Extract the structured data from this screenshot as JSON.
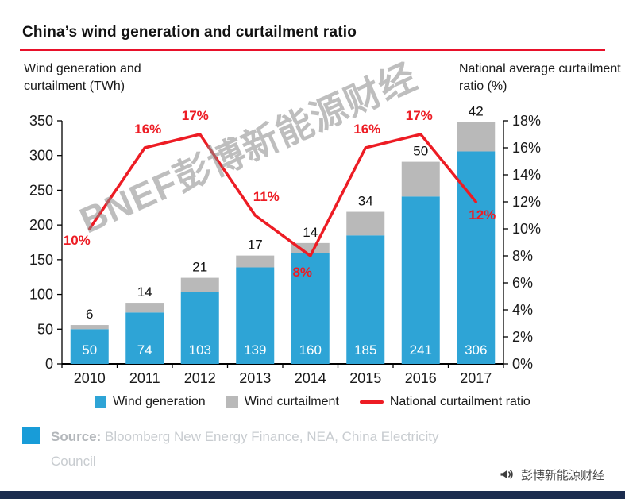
{
  "chart_data": {
    "type": "bar",
    "title": "China’s wind generation and curtailment ratio",
    "categories": [
      "2010",
      "2011",
      "2012",
      "2013",
      "2014",
      "2015",
      "2016",
      "2017"
    ],
    "series": [
      {
        "name": "Wind generation",
        "type": "bar",
        "color": "#2ea4d6",
        "values": [
          50,
          74,
          103,
          139,
          160,
          185,
          241,
          306
        ]
      },
      {
        "name": "Wind curtailment",
        "type": "bar",
        "color": "#b9b9b9",
        "values": [
          6,
          14,
          21,
          17,
          14,
          34,
          50,
          42
        ]
      },
      {
        "name": "National curtailment ratio",
        "type": "line",
        "color": "#ed1c24",
        "values": [
          10,
          16,
          17,
          11,
          8,
          16,
          17,
          12
        ],
        "point_labels": [
          "10%",
          "16%",
          "17%",
          "11%",
          "8%",
          "16%",
          "17%",
          "12%"
        ]
      }
    ],
    "left_axis": {
      "title": "Wind generation and curtailment (TWh)",
      "min": 0,
      "max": 350,
      "step": 50,
      "tick_labels": [
        "350",
        "300",
        "250",
        "200",
        "150",
        "100",
        "50",
        "0"
      ]
    },
    "right_axis": {
      "title": "National average curtailment ratio (%)",
      "min": 0,
      "max": 18,
      "step": 2,
      "tick_labels": [
        "18%",
        "16%",
        "14%",
        "12%",
        "10%",
        "8%",
        "6%",
        "4%",
        "2%",
        "0%"
      ]
    },
    "grid": "off",
    "legend_position": "bottom"
  },
  "title_rule_color": "#e8112a",
  "watermark": {
    "text": "BNEF彭博新能源财经"
  },
  "source": {
    "label": "Source:",
    "line1": "Bloomberg New Energy Finance, NEA, China Electricity",
    "line2": "Council",
    "icon_color": "#189cd8"
  },
  "footer": {
    "logo_text": "彭博新能源财经",
    "bar_color": "#1b2c4e"
  }
}
